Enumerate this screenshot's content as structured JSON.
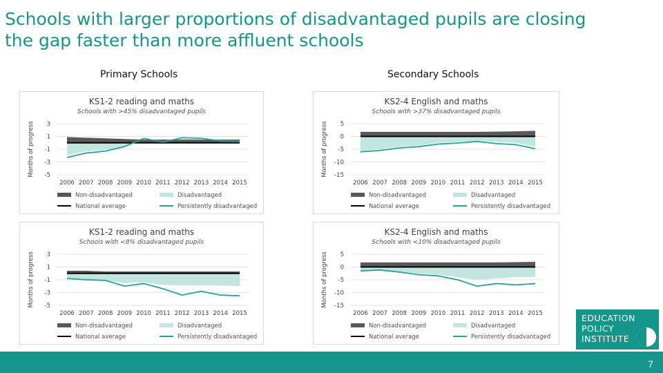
{
  "slide": {
    "title_line1": "Schools with larger proportions of disadvantaged pupils are closing",
    "title_line2": "the gap faster than more affluent schools",
    "primary_label": "Primary Schools",
    "secondary_label": "Secondary Schools",
    "page_number": "7"
  },
  "logo": {
    "line1": "EDUCATION",
    "line2": "POLICY",
    "line3": "INSTITUTE"
  },
  "colors": {
    "teal": "#15968b",
    "non_disadvantaged": "#595959",
    "national_average": "#000000",
    "disadvantaged_fill": "#c2e5e0",
    "persistently_disadvantaged": "#1ea49a"
  },
  "chart_data": [
    {
      "type": "line",
      "title": "KS1-2 reading and maths",
      "subtitle": "Schools with >45% disadvantaged pupils",
      "ylabel": "Months of progress",
      "yticks": [
        3,
        1,
        -1,
        -3,
        -5
      ],
      "ylim": [
        -5,
        3
      ],
      "categories": [
        "2006",
        "2007",
        "2008",
        "2009",
        "2010",
        "2011",
        "2012",
        "2013",
        "2014",
        "2015"
      ],
      "series": [
        {
          "name": "Non-disadvantaged",
          "kind": "band",
          "values": [
            0.9,
            0.8,
            0.7,
            0.6,
            0.5,
            0.5,
            0.5,
            0.5,
            0.5,
            0.5
          ]
        },
        {
          "name": "National average",
          "kind": "line",
          "values": [
            0,
            0,
            0,
            0,
            0,
            0,
            0,
            0,
            0,
            0
          ]
        },
        {
          "name": "Disadvantaged",
          "kind": "area",
          "values": [
            -2.0,
            -1.3,
            -1.1,
            -0.6,
            0.5,
            -0.2,
            0.6,
            0.5,
            0.1,
            0.0
          ]
        },
        {
          "name": "Persistently disadvantaged",
          "kind": "line",
          "values": [
            -2.3,
            -1.6,
            -1.3,
            -0.6,
            0.7,
            0.1,
            0.8,
            0.7,
            0.3,
            0.2
          ]
        }
      ],
      "legend": [
        "Non-disadvantaged",
        "Disadvantaged",
        "National average",
        "Persistently disadvantaged"
      ]
    },
    {
      "type": "line",
      "title": "KS2-4 English and maths",
      "subtitle": "Schools with >37% disadvantaged pupils",
      "ylabel": "Months of progress",
      "yticks": [
        5,
        0,
        -5,
        -10,
        -15
      ],
      "ylim": [
        -15,
        5
      ],
      "categories": [
        "2006",
        "2007",
        "2008",
        "2009",
        "2010",
        "2011",
        "2012",
        "2013",
        "2014",
        "2015"
      ],
      "series": [
        {
          "name": "Non-disadvantaged",
          "kind": "band",
          "values": [
            1.8,
            1.8,
            1.8,
            1.8,
            1.8,
            1.8,
            1.8,
            1.9,
            2.0,
            2.2
          ]
        },
        {
          "name": "National average",
          "kind": "line",
          "values": [
            0,
            0,
            0,
            0,
            0,
            0,
            0,
            0,
            0,
            0
          ]
        },
        {
          "name": "Disadvantaged",
          "kind": "area",
          "values": [
            -5.5,
            -5.0,
            -4.0,
            -3.5,
            -2.5,
            -2.2,
            -1.8,
            -2.2,
            -2.5,
            -4.0
          ]
        },
        {
          "name": "Persistently disadvantaged",
          "kind": "line",
          "values": [
            -6.0,
            -5.5,
            -4.5,
            -4.0,
            -3.0,
            -2.6,
            -2.0,
            -2.8,
            -3.2,
            -4.8
          ]
        }
      ],
      "legend": [
        "Non-disadvantaged",
        "Disadvantaged",
        "National average",
        "Persistently disadvantaged"
      ]
    },
    {
      "type": "line",
      "title": "KS1-2 reading and maths",
      "subtitle": "Schools with <8% disadvantaged pupils",
      "ylabel": "Months of progress",
      "yticks": [
        3,
        1,
        -1,
        -3,
        -5
      ],
      "ylim": [
        -5,
        3
      ],
      "categories": [
        "2006",
        "2007",
        "2008",
        "2009",
        "2010",
        "2011",
        "2012",
        "2013",
        "2014",
        "2015"
      ],
      "series": [
        {
          "name": "Non-disadvantaged",
          "kind": "band",
          "values": [
            0.4,
            0.4,
            0.3,
            0.3,
            0.3,
            0.3,
            0.3,
            0.3,
            0.3,
            0.3
          ]
        },
        {
          "name": "National average",
          "kind": "line",
          "values": [
            0,
            0,
            0,
            0,
            0,
            0,
            0,
            0,
            0,
            0
          ]
        },
        {
          "name": "Disadvantaged",
          "kind": "area",
          "values": [
            -0.8,
            -1.0,
            -1.1,
            -1.5,
            -1.4,
            -1.8,
            -1.9,
            -1.9,
            -1.9,
            -2.0
          ]
        },
        {
          "name": "Persistently disadvantaged",
          "kind": "line",
          "values": [
            -0.8,
            -1.0,
            -1.1,
            -2.0,
            -1.6,
            -2.4,
            -3.4,
            -2.8,
            -3.4,
            -3.5
          ]
        }
      ],
      "legend": [
        "Non-disadvantaged",
        "Disadvantaged",
        "National average",
        "Persistently disadvantaged"
      ]
    },
    {
      "type": "line",
      "title": "KS2-4 English and maths",
      "subtitle": "Schools with <10% disadvantaged pupils",
      "ylabel": "Months of progress",
      "yticks": [
        5,
        0,
        -5,
        -10,
        -15
      ],
      "ylim": [
        -15,
        5
      ],
      "categories": [
        "2006",
        "2007",
        "2008",
        "2009",
        "2010",
        "2011",
        "2012",
        "2013",
        "2014",
        "2015"
      ],
      "series": [
        {
          "name": "Non-disadvantaged",
          "kind": "band",
          "values": [
            1.8,
            1.8,
            1.8,
            1.8,
            1.8,
            1.8,
            1.8,
            1.8,
            1.9,
            2.0
          ]
        },
        {
          "name": "National average",
          "kind": "line",
          "values": [
            0,
            0,
            0,
            0,
            0,
            0,
            0,
            0,
            0,
            0
          ]
        },
        {
          "name": "Disadvantaged",
          "kind": "area",
          "values": [
            -1.5,
            -1.5,
            -2.0,
            -2.5,
            -3.0,
            -4.0,
            -5.0,
            -4.5,
            -4.0,
            -4.0
          ]
        },
        {
          "name": "Persistently disadvantaged",
          "kind": "line",
          "values": [
            -1.5,
            -1.2,
            -2.0,
            -3.0,
            -3.5,
            -5.0,
            -7.5,
            -6.5,
            -7.0,
            -6.5
          ]
        }
      ],
      "legend": [
        "Non-disadvantaged",
        "Disadvantaged",
        "National average",
        "Persistently disadvantaged"
      ]
    }
  ]
}
